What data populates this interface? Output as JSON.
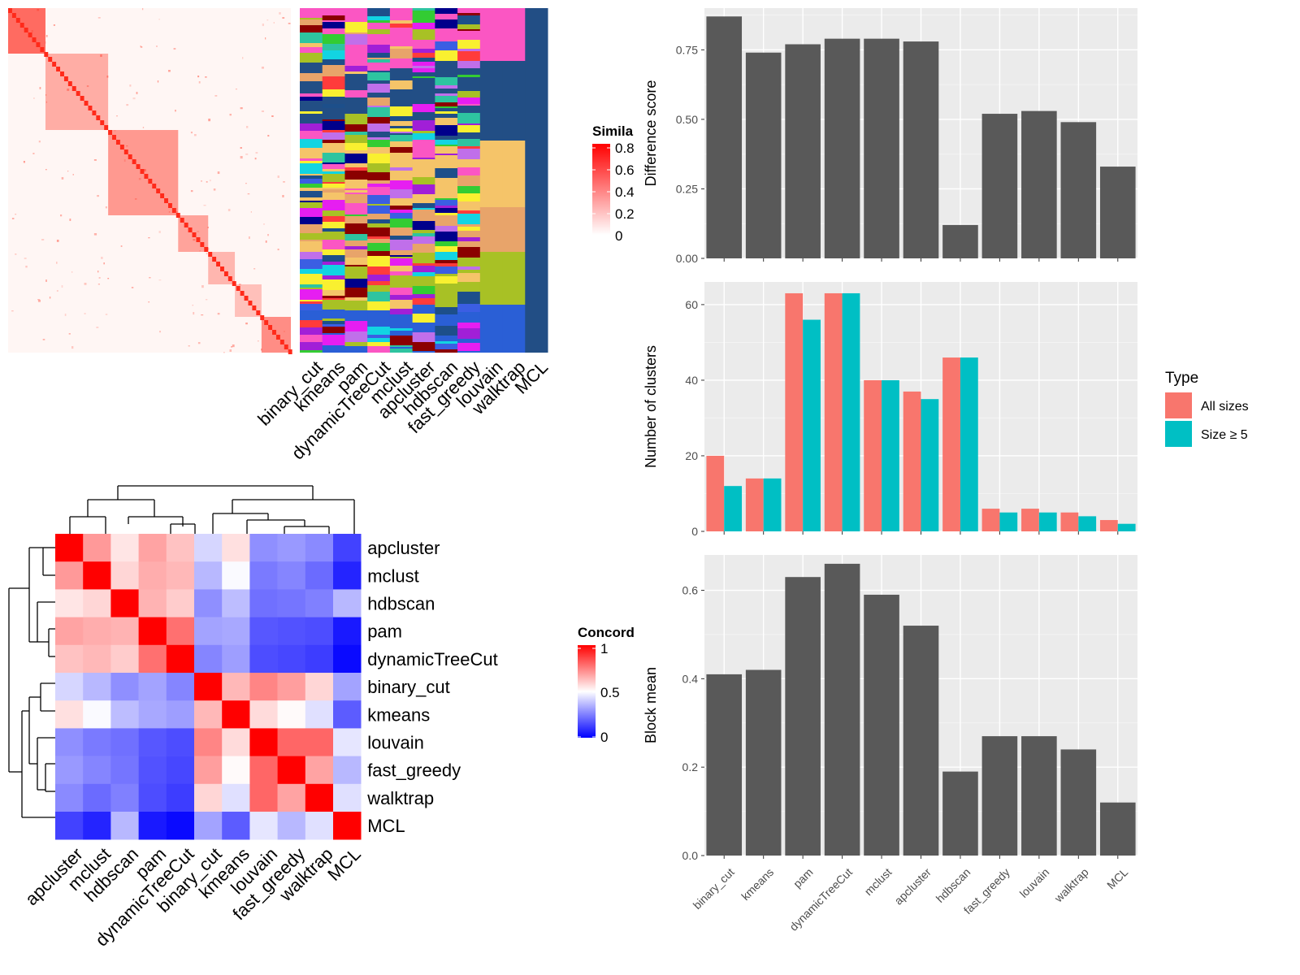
{
  "chart_data": [
    {
      "type": "heatmap",
      "title": "",
      "legend": {
        "title": "Simila",
        "ticks": [
          "0.8",
          "0.6",
          "0.4",
          "0.2",
          "0"
        ],
        "placement": "right"
      },
      "annotation_columns": [
        "binary_cut",
        "kmeans",
        "pam",
        "dynamicTreeCut",
        "mclust",
        "apcluster",
        "hdbscan",
        "fast_greedy",
        "louvain",
        "walktrap",
        "MCL"
      ],
      "colors": {
        "low": "#ffffff",
        "high": "#ff0000"
      }
    },
    {
      "type": "heatmap",
      "title": "",
      "legend": {
        "title": "Concord",
        "ticks": [
          "1",
          "0.5",
          "0"
        ],
        "placement": "right"
      },
      "rows": [
        "apcluster",
        "mclust",
        "hdbscan",
        "pam",
        "dynamicTreeCut",
        "binary_cut",
        "kmeans",
        "louvain",
        "fast_greedy",
        "walktrap",
        "MCL"
      ],
      "columns": [
        "apcluster",
        "mclust",
        "hdbscan",
        "pam",
        "dynamicTreeCut",
        "binary_cut",
        "kmeans",
        "louvain",
        "fast_greedy",
        "walktrap",
        "MCL"
      ],
      "values": [
        [
          1.0,
          0.7,
          0.55,
          0.68,
          0.62,
          0.42,
          0.56,
          0.28,
          0.3,
          0.27,
          0.13
        ],
        [
          0.7,
          1.0,
          0.58,
          0.66,
          0.64,
          0.36,
          0.49,
          0.24,
          0.26,
          0.21,
          0.07
        ],
        [
          0.55,
          0.58,
          1.0,
          0.65,
          0.6,
          0.28,
          0.37,
          0.22,
          0.23,
          0.25,
          0.36
        ],
        [
          0.68,
          0.66,
          0.65,
          1.0,
          0.78,
          0.32,
          0.33,
          0.17,
          0.16,
          0.15,
          0.05
        ],
        [
          0.62,
          0.64,
          0.6,
          0.78,
          1.0,
          0.26,
          0.31,
          0.15,
          0.14,
          0.12,
          0.02
        ],
        [
          0.42,
          0.36,
          0.28,
          0.32,
          0.26,
          1.0,
          0.64,
          0.74,
          0.69,
          0.58,
          0.32
        ],
        [
          0.56,
          0.49,
          0.37,
          0.33,
          0.31,
          0.64,
          1.0,
          0.57,
          0.51,
          0.44,
          0.18
        ],
        [
          0.28,
          0.24,
          0.22,
          0.17,
          0.15,
          0.74,
          0.57,
          1.0,
          0.8,
          0.8,
          0.45
        ],
        [
          0.3,
          0.26,
          0.23,
          0.16,
          0.14,
          0.69,
          0.51,
          0.8,
          1.0,
          0.68,
          0.36
        ],
        [
          0.27,
          0.21,
          0.25,
          0.15,
          0.12,
          0.58,
          0.44,
          0.8,
          0.68,
          1.0,
          0.44
        ],
        [
          0.13,
          0.07,
          0.36,
          0.05,
          0.02,
          0.32,
          0.18,
          0.45,
          0.36,
          0.44,
          1.0
        ]
      ],
      "colors": {
        "low": "#0000ff",
        "mid": "#ffffff",
        "high": "#ff0000"
      }
    },
    {
      "type": "bar",
      "title": "",
      "xlabel": "",
      "ylabel": "Difference score",
      "categories": [
        "binary_cut",
        "kmeans",
        "pam",
        "dynamicTreeCut",
        "mclust",
        "apcluster",
        "hdbscan",
        "fast_greedy",
        "louvain",
        "walktrap",
        "MCL"
      ],
      "values": [
        0.87,
        0.74,
        0.77,
        0.79,
        0.79,
        0.78,
        0.12,
        0.52,
        0.53,
        0.49,
        0.33
      ],
      "ylim": [
        0,
        0.9
      ],
      "yticks": [
        0,
        0.25,
        0.5,
        0.75
      ],
      "ytick_labels": [
        "0.00",
        "0.25",
        "0.50",
        "0.75"
      ],
      "grid": true,
      "bar_color": "#595959"
    },
    {
      "type": "bar",
      "title": "",
      "xlabel": "",
      "ylabel": "Number of clusters",
      "categories": [
        "binary_cut",
        "kmeans",
        "pam",
        "dynamicTreeCut",
        "mclust",
        "apcluster",
        "hdbscan",
        "fast_greedy",
        "louvain",
        "walktrap",
        "MCL"
      ],
      "series": [
        {
          "name": "All sizes",
          "values": [
            20,
            14,
            63,
            63,
            40,
            37,
            46,
            6,
            6,
            5,
            3
          ],
          "color": "#f8766d"
        },
        {
          "name": "Size ≥ 5",
          "values": [
            12,
            14,
            56,
            63,
            40,
            35,
            46,
            5,
            5,
            4,
            2
          ],
          "color": "#00bfc4"
        }
      ],
      "ylim": [
        0,
        66
      ],
      "yticks": [
        0,
        20,
        40,
        60
      ],
      "ytick_labels": [
        "0",
        "20",
        "40",
        "60"
      ],
      "grid": true,
      "legend": {
        "title": "Type",
        "placement": "right"
      }
    },
    {
      "type": "bar",
      "title": "",
      "xlabel": "",
      "ylabel": "Block mean",
      "categories": [
        "binary_cut",
        "kmeans",
        "pam",
        "dynamicTreeCut",
        "mclust",
        "apcluster",
        "hdbscan",
        "fast_greedy",
        "louvain",
        "walktrap",
        "MCL"
      ],
      "values": [
        0.41,
        0.42,
        0.63,
        0.66,
        0.59,
        0.52,
        0.19,
        0.27,
        0.27,
        0.24,
        0.12
      ],
      "ylim": [
        0,
        0.68
      ],
      "yticks": [
        0,
        0.2,
        0.4,
        0.6
      ],
      "ytick_labels": [
        "0.0",
        "0.2",
        "0.4",
        "0.6"
      ],
      "grid": true,
      "bar_color": "#595959"
    }
  ]
}
